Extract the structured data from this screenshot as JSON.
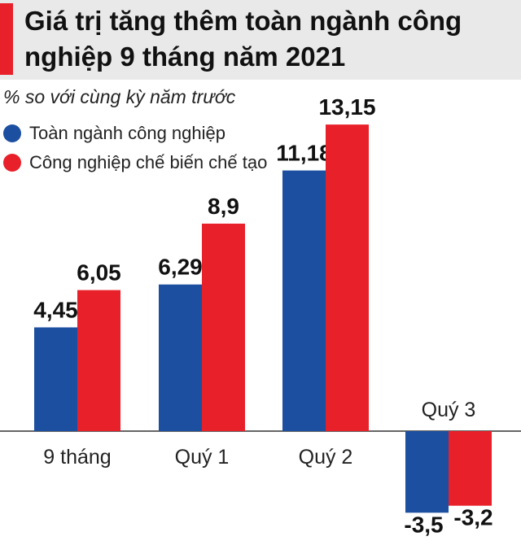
{
  "title": "Giá trị tăng thêm toàn ngành công nghiệp 9 tháng năm 2021",
  "subtitle": "% so với cùng kỳ năm trước",
  "colors": {
    "series1": "#1c4fa0",
    "series2": "#e8202a",
    "accent": "#e8202a",
    "axis": "#333333"
  },
  "legend": [
    {
      "label": "Toàn ngành công nghiệp",
      "color": "#1c4fa0"
    },
    {
      "label": "Công nghiệp chế biến chế tạo",
      "color": "#e8202a"
    }
  ],
  "chart_data": {
    "type": "bar",
    "title": "Giá trị tăng thêm toàn ngành công nghiệp 9 tháng năm 2021",
    "ylabel": "% so với cùng kỳ năm trước",
    "categories": [
      "9 tháng",
      "Quý 1",
      "Quý 2",
      "Quý 3"
    ],
    "series": [
      {
        "name": "Toàn ngành công nghiệp",
        "values": [
          4.45,
          6.29,
          11.18,
          -3.5
        ],
        "labels": [
          "4,45",
          "6,29",
          "11,18",
          "-3,5"
        ]
      },
      {
        "name": "Công nghiệp chế biến chế tạo",
        "values": [
          6.05,
          8.9,
          13.15,
          -3.2
        ],
        "labels": [
          "6,05",
          "8,9",
          "13,15",
          "-3,2"
        ]
      }
    ],
    "ylim": [
      -3.5,
      13.15
    ],
    "legend_position": "top-left",
    "grid": false
  }
}
